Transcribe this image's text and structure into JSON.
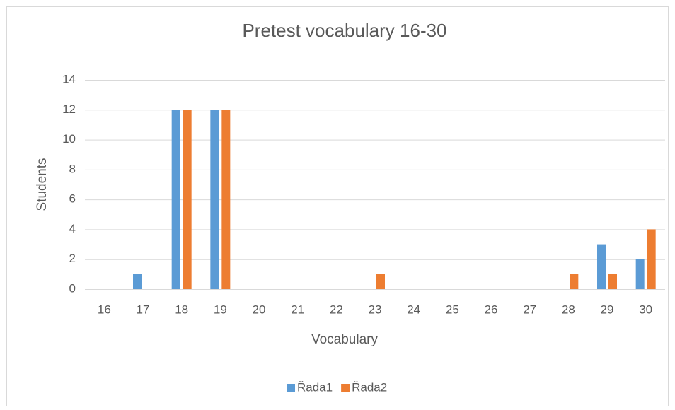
{
  "chart_data": {
    "type": "bar",
    "title": "Pretest vocabulary 16-30",
    "x_label": "Vocabulary",
    "y_label": "Students",
    "categories": [
      "16",
      "17",
      "18",
      "19",
      "20",
      "21",
      "22",
      "23",
      "24",
      "25",
      "26",
      "27",
      "28",
      "29",
      "30"
    ],
    "series": [
      {
        "name": "Řada1",
        "color": "#5b9bd5",
        "values": [
          0,
          1,
          12,
          12,
          0,
          0,
          0,
          0,
          0,
          0,
          0,
          0,
          0,
          3,
          2
        ]
      },
      {
        "name": "Řada2",
        "color": "#ed7d31",
        "values": [
          0,
          0,
          12,
          12,
          0,
          0,
          0,
          1,
          0,
          0,
          0,
          0,
          1,
          1,
          4
        ]
      }
    ],
    "ylim": [
      0,
      14
    ],
    "yticks": [
      0,
      2,
      4,
      6,
      8,
      10,
      12,
      14
    ],
    "grid": true,
    "legend": "bottom"
  }
}
